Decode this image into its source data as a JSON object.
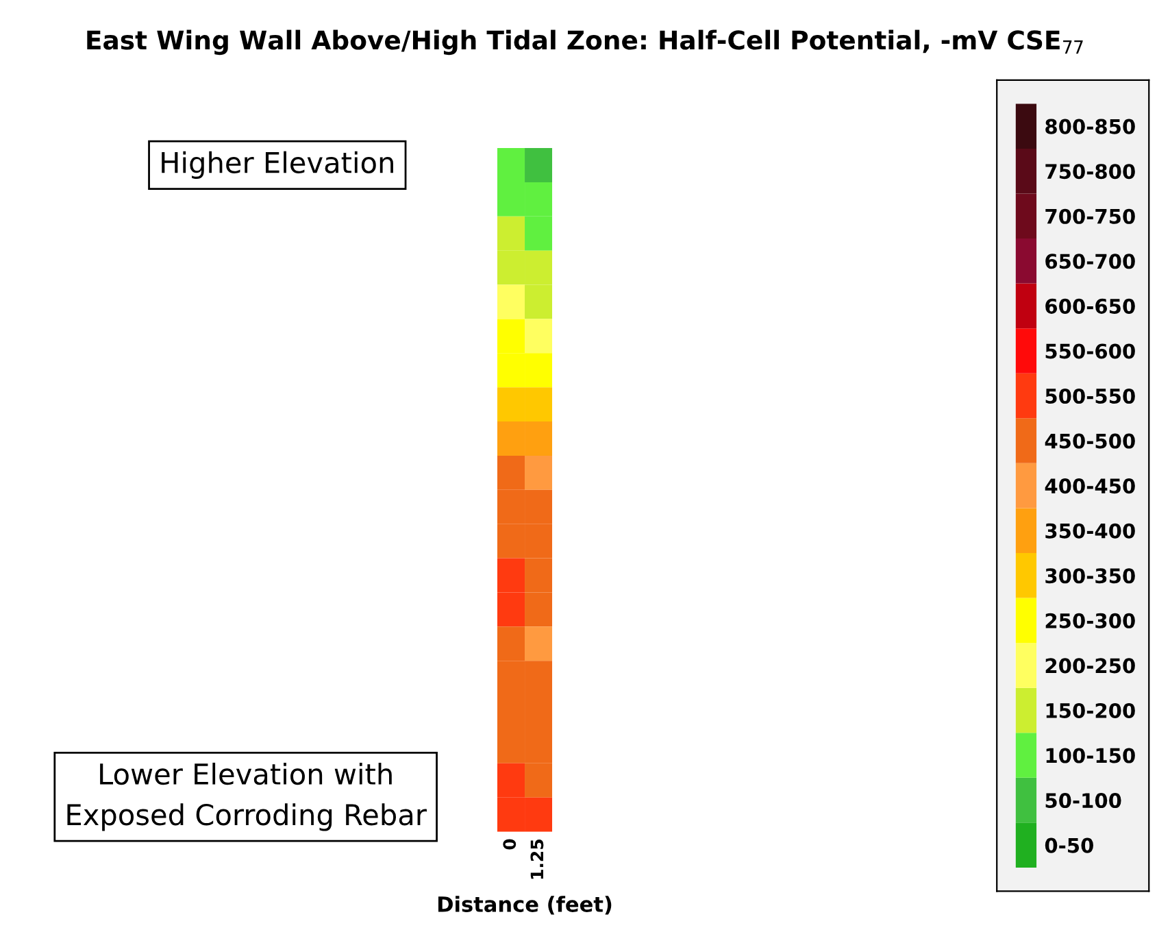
{
  "chart_data": {
    "type": "heatmap",
    "title": "East Wing Wall Above/High Tidal Zone: Half-Cell Potential, -mV CSE$_{77}$",
    "xlabel": "Distance (feet)",
    "categories": [
      "0",
      "1.25"
    ],
    "y_categories": [
      null,
      null,
      null,
      null,
      null,
      null,
      null,
      null,
      null,
      null,
      null,
      null,
      null,
      null,
      null,
      null,
      null,
      null,
      null,
      null
    ],
    "cells": [
      [
        125,
        75
      ],
      [
        125,
        125
      ],
      [
        175,
        125
      ],
      [
        175,
        175
      ],
      [
        225,
        175
      ],
      [
        275,
        225
      ],
      [
        275,
        275
      ],
      [
        325,
        325
      ],
      [
        375,
        375
      ],
      [
        475,
        425
      ],
      [
        475,
        475
      ],
      [
        475,
        475
      ],
      [
        525,
        475
      ],
      [
        525,
        475
      ],
      [
        475,
        425
      ],
      [
        475,
        475
      ],
      [
        475,
        475
      ],
      [
        475,
        475
      ],
      [
        525,
        475
      ],
      [
        525,
        525
      ]
    ],
    "clim": [
      0,
      850
    ],
    "cticks": [
      {
        "value": 25,
        "label": "0-50"
      },
      {
        "value": 75,
        "label": "50-100"
      },
      {
        "value": 125,
        "label": "100-150"
      },
      {
        "value": 175,
        "label": "150-200"
      },
      {
        "value": 225,
        "label": "200-250"
      },
      {
        "value": 275,
        "label": "250-300"
      },
      {
        "value": 325,
        "label": "300-350"
      },
      {
        "value": 375,
        "label": "350-400"
      },
      {
        "value": 425,
        "label": "400-450"
      },
      {
        "value": 475,
        "label": "450-500"
      },
      {
        "value": 525,
        "label": "500-550"
      },
      {
        "value": 575,
        "label": "550-600"
      },
      {
        "value": 625,
        "label": "600-650"
      },
      {
        "value": 675,
        "label": "650-700"
      },
      {
        "value": 725,
        "label": "700-750"
      },
      {
        "value": 775,
        "label": "750-800"
      },
      {
        "value": 825,
        "label": "800-850"
      }
    ],
    "colors": [
      "#20b020",
      "#40c040",
      "#60f040",
      "#ccee30",
      "#ffff60",
      "#ffff00",
      "#ffc800",
      "#ffa010",
      "#ff9a40",
      "#f06a18",
      "#ff3a10",
      "#ff0a0a",
      "#c00010",
      "#8a0a30",
      "#6e0a1c",
      "#5a0a18",
      "#3b0a10"
    ],
    "tick_labels": "x",
    "annotations": [
      "Higher Elevation",
      "Lower Elevation with\nExposed Corroding Rebar"
    ]
  }
}
